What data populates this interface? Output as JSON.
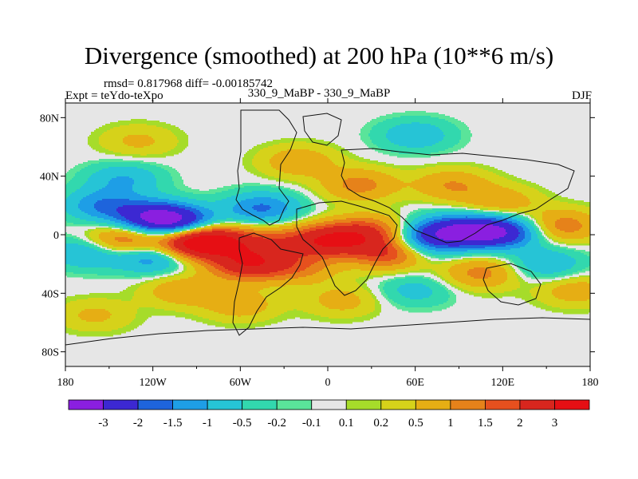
{
  "figure": {
    "title": "Divergence (smoothed) at 200 hPa (10**6 m/s)",
    "stats": "rmsd= 0.817968 diff= -0.00185742",
    "experiment": "Expt = teYdo-teXpo",
    "case": "330_9_MaBP - 330_9_MaBP",
    "season": "DJF"
  },
  "chart_data": {
    "type": "heatmap",
    "title": "Divergence (smoothed) at 200 hPa (10**6 m/s)",
    "xlabel": "",
    "ylabel": "",
    "xlim": [
      -180,
      180
    ],
    "ylim": [
      -90,
      90
    ],
    "x_ticks": [
      -180,
      -120,
      -60,
      0,
      60,
      120,
      180
    ],
    "x_tick_labels": [
      "180",
      "120W",
      "60W",
      "0",
      "60E",
      "120E",
      "180"
    ],
    "y_ticks": [
      80,
      40,
      0,
      -40,
      -80
    ],
    "y_tick_labels": [
      "80N",
      "40N",
      "0",
      "40S",
      "80S"
    ],
    "colorbar": {
      "levels": [
        "-3",
        "-2",
        "-1.5",
        "-1",
        "-0.5",
        "-0.2",
        "-0.1",
        "0.1",
        "0.2",
        "0.5",
        "1",
        "1.5",
        "2",
        "3"
      ],
      "colors": [
        "#8a1fe0",
        "#3c28d2",
        "#1e64dc",
        "#1e9ee6",
        "#26c4d6",
        "#32d8ae",
        "#5ae49a",
        "#e6e6e6",
        "#a6dc2a",
        "#d6d21a",
        "#e6ae14",
        "#e6821a",
        "#e6501e",
        "#d8261e",
        "#e60f14"
      ]
    },
    "features": [
      {
        "lon": -120,
        "lat": 12,
        "value": -2.6
      },
      {
        "lon": -100,
        "lat": 8,
        "value": -2.2
      },
      {
        "lon": -80,
        "lat": -4,
        "value": 2.8
      },
      {
        "lon": -95,
        "lat": -6,
        "value": 2.2
      },
      {
        "lon": -140,
        "lat": -4,
        "value": 1.8
      },
      {
        "lon": -45,
        "lat": 18,
        "value": -1.6
      },
      {
        "lon": -120,
        "lat": -15,
        "value": -1.6
      },
      {
        "lon": -155,
        "lat": 20,
        "value": -1.4
      },
      {
        "lon": -165,
        "lat": -12,
        "value": -1.2
      },
      {
        "lon": -55,
        "lat": -20,
        "value": 2.6
      },
      {
        "lon": -40,
        "lat": -5,
        "value": 1.4
      },
      {
        "lon": -20,
        "lat": -22,
        "value": 1.2
      },
      {
        "lon": 0,
        "lat": -4,
        "value": 2.7
      },
      {
        "lon": 28,
        "lat": 2,
        "value": 1.8
      },
      {
        "lon": 22,
        "lat": 34,
        "value": 1.2
      },
      {
        "lon": 42,
        "lat": -12,
        "value": 2.2
      },
      {
        "lon": 80,
        "lat": 2,
        "value": -2.0
      },
      {
        "lon": 105,
        "lat": 2,
        "value": -2.3
      },
      {
        "lon": 125,
        "lat": 2,
        "value": -1.6
      },
      {
        "lon": 62,
        "lat": -6,
        "value": -1.4
      },
      {
        "lon": 160,
        "lat": 6,
        "value": 1.4
      },
      {
        "lon": 118,
        "lat": 22,
        "value": 0.9
      },
      {
        "lon": 85,
        "lat": 34,
        "value": 1.0
      },
      {
        "lon": 105,
        "lat": -26,
        "value": 1.2
      },
      {
        "lon": 150,
        "lat": -20,
        "value": -1.0
      },
      {
        "lon": 170,
        "lat": -38,
        "value": 0.8
      },
      {
        "lon": -100,
        "lat": -38,
        "value": 0.9
      },
      {
        "lon": -60,
        "lat": -48,
        "value": 0.8
      },
      {
        "lon": -140,
        "lat": 38,
        "value": -1.0
      },
      {
        "lon": -20,
        "lat": 50,
        "value": 0.9
      },
      {
        "lon": 60,
        "lat": 68,
        "value": -0.9
      },
      {
        "lon": -130,
        "lat": 64,
        "value": 0.6
      },
      {
        "lon": 10,
        "lat": -45,
        "value": 0.7
      },
      {
        "lon": 60,
        "lat": -38,
        "value": -0.7
      },
      {
        "lon": -160,
        "lat": -55,
        "value": 0.6
      }
    ]
  }
}
